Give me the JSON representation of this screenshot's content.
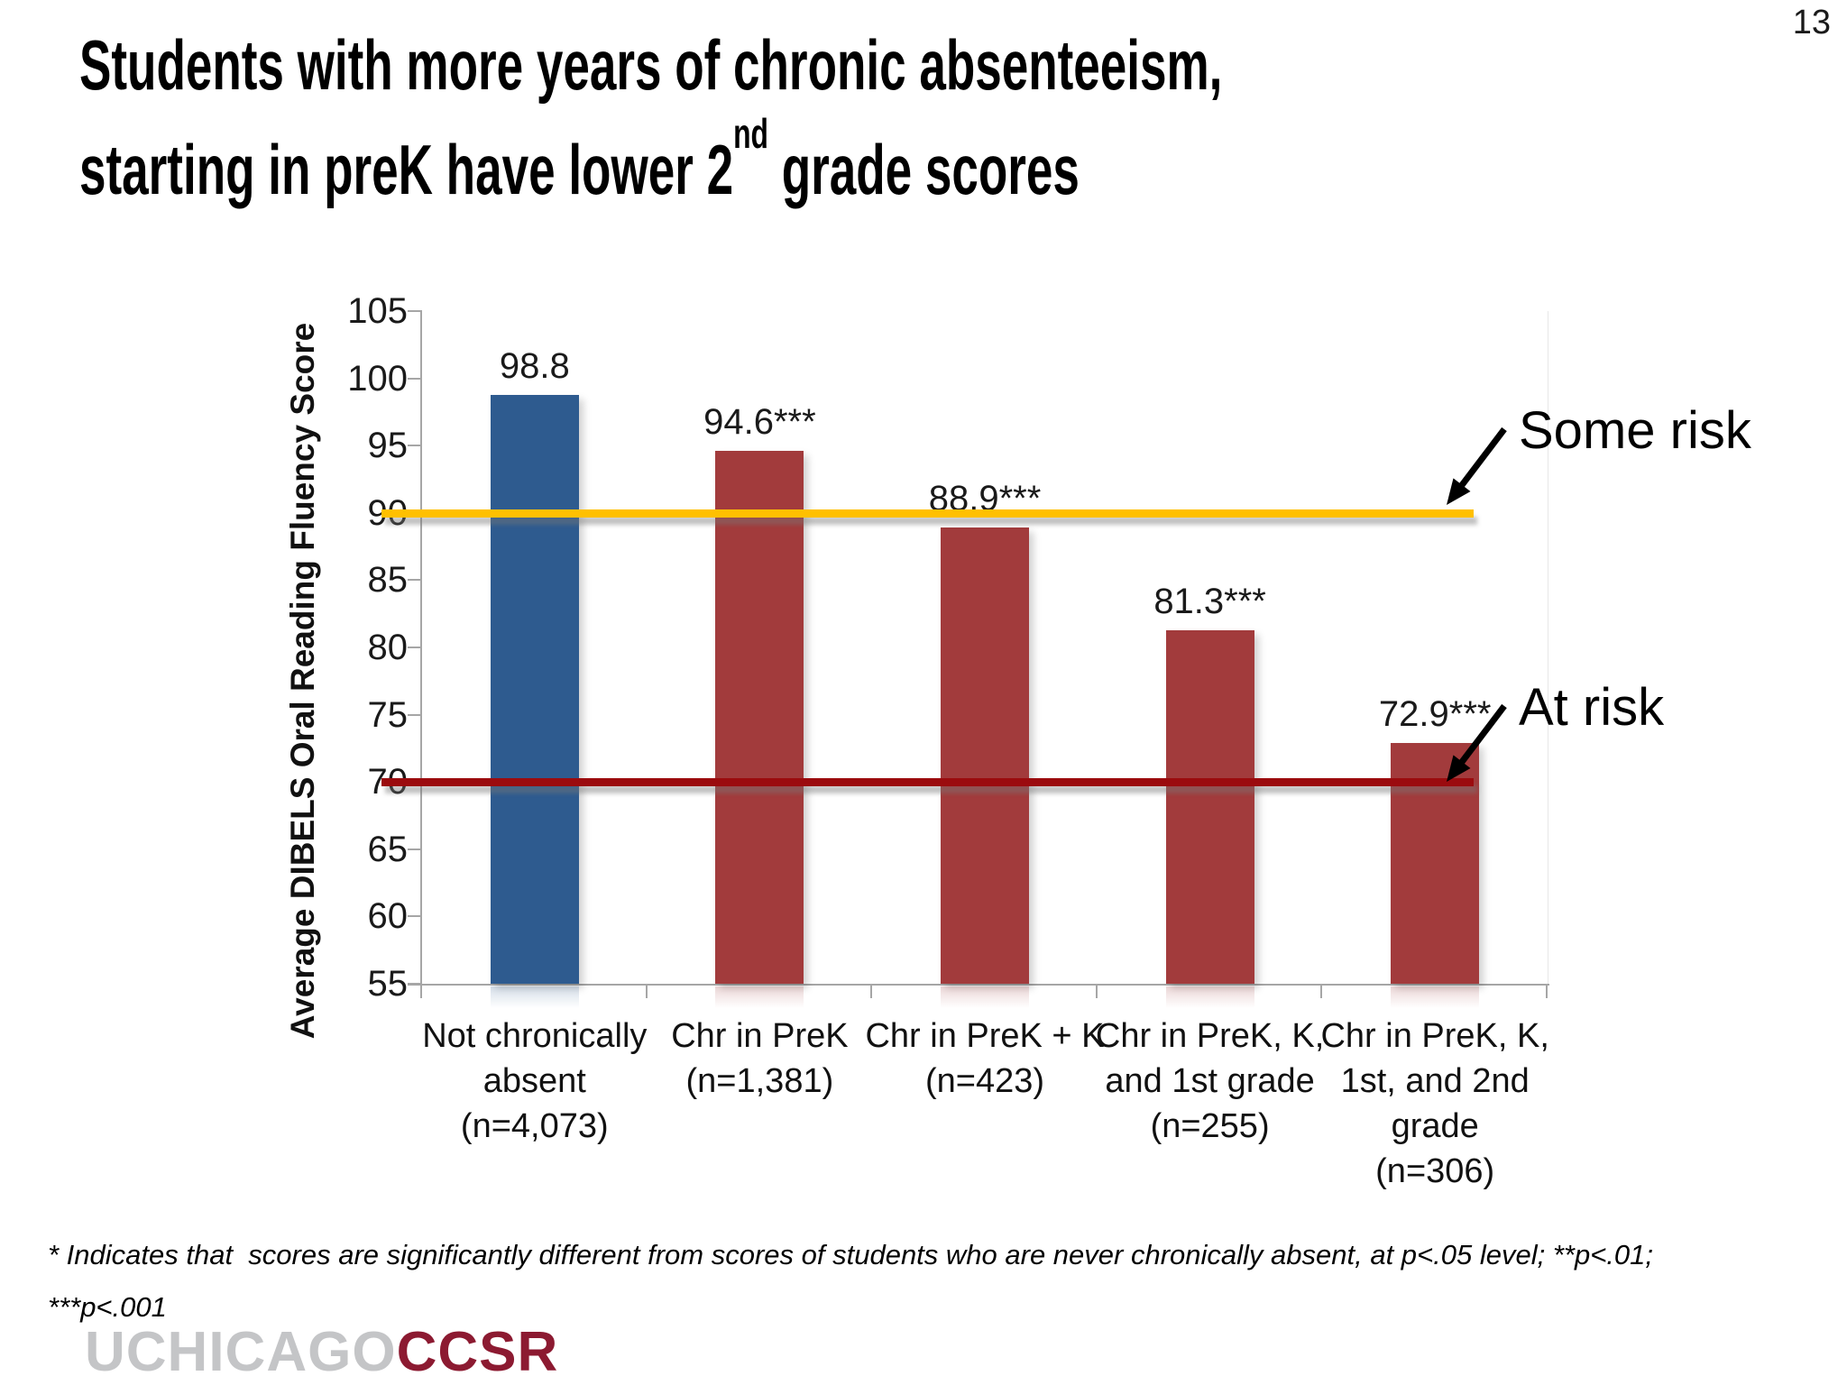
{
  "page_number": "13",
  "title": {
    "line1": "Students with more years of chronic absenteeism,",
    "line2_pre": "starting in preK have lower 2",
    "line2_sup": "nd",
    "line2_post": " grade scores"
  },
  "chart_data": {
    "type": "bar",
    "ylabel": "Average DIBELS Oral Reading Fluency Score",
    "ylim": [
      55,
      105
    ],
    "yticks": [
      105,
      100,
      95,
      90,
      85,
      80,
      75,
      70,
      65,
      60,
      55
    ],
    "grid": false,
    "categories": [
      [
        "Not chronically",
        "absent",
        "(n=4,073)"
      ],
      [
        "Chr in PreK",
        "(n=1,381)"
      ],
      [
        "Chr in PreK + K",
        "(n=423)"
      ],
      [
        "Chr in PreK, K,",
        "and 1st grade",
        "(n=255)"
      ],
      [
        "Chr in PreK, K,",
        "1st, and 2nd",
        "grade",
        "(n=306)"
      ]
    ],
    "values": [
      98.8,
      94.6,
      88.9,
      81.3,
      72.9
    ],
    "value_labels": [
      "98.8",
      "94.6***",
      "88.9***",
      "81.3***",
      "72.9***"
    ],
    "bar_colors": [
      "#2e5b8f",
      "#a23b3c",
      "#a23b3c",
      "#a23b3c",
      "#a23b3c"
    ],
    "reference_lines": [
      {
        "label": "Some risk",
        "value": 90,
        "color": "#ffc000"
      },
      {
        "label": "At risk",
        "value": 70,
        "color": "#9b0b0e"
      }
    ]
  },
  "footnote": {
    "line1": "* Indicates that  scores are significantly different from scores of students who are never chronically absent, at p<.05 level; **p<.01;",
    "line2": "***p<.001"
  },
  "logo": {
    "gray": "UCHICAGO",
    "red": "CCSR"
  }
}
